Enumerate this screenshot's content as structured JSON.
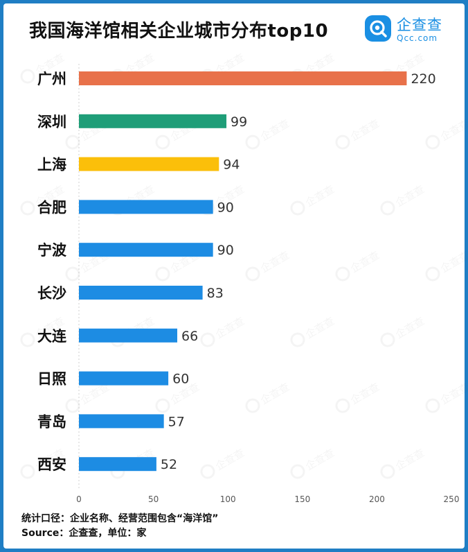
{
  "title": "我国海洋馆相关企业城市分布top10",
  "logo": {
    "name_cn": "企查查",
    "name_en": "Qcc.com"
  },
  "watermark_text": "企查查",
  "footer": {
    "line1": "统计口径：企业名称、经营范围包含“海洋馆”",
    "line2": "Source：企查查，单位：家"
  },
  "chart_data": {
    "type": "bar",
    "orientation": "horizontal",
    "title": "我国海洋馆相关企业城市分布top10",
    "categories": [
      "广州",
      "深圳",
      "上海",
      "合肥",
      "宁波",
      "长沙",
      "大连",
      "日照",
      "青岛",
      "西安"
    ],
    "values": [
      220,
      99,
      94,
      90,
      90,
      83,
      66,
      60,
      57,
      52
    ],
    "bar_colors": [
      "#e8714a",
      "#1f9e78",
      "#fbbf0a",
      "#1d8ce3",
      "#1d8ce3",
      "#1d8ce3",
      "#1d8ce3",
      "#1d8ce3",
      "#1d8ce3",
      "#1d8ce3"
    ],
    "xlim": [
      0,
      250
    ],
    "xticks": [
      0,
      50,
      100,
      150,
      200,
      250
    ],
    "xlabel": "",
    "ylabel": "",
    "grid": false,
    "data_labels": true
  }
}
